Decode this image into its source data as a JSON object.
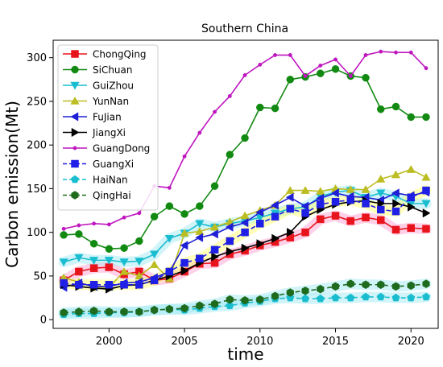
{
  "chart_data": {
    "type": "line",
    "title": "Southern China",
    "xlabel": "time",
    "ylabel": "Carbon emission(Mt)",
    "xlim": [
      1996.3,
      2021.8
    ],
    "ylim": [
      -10,
      320
    ],
    "xticks": [
      2000,
      2005,
      2010,
      2015,
      2020
    ],
    "yticks": [
      0,
      50,
      100,
      150,
      200,
      250,
      300
    ],
    "legend_position": "upper-left",
    "grid": false,
    "x": [
      1997,
      1998,
      1999,
      2000,
      2001,
      2002,
      2003,
      2004,
      2005,
      2006,
      2007,
      2008,
      2009,
      2010,
      2011,
      2012,
      2013,
      2014,
      2015,
      2016,
      2017,
      2018,
      2019,
      2020,
      2021
    ],
    "series": [
      {
        "name": "ChongQing",
        "color": "#e8141b",
        "marker": "square",
        "dashed": false,
        "band": "#ff99cc",
        "values": [
          45,
          55,
          59,
          60,
          52,
          55,
          45,
          47,
          55,
          64,
          65,
          75,
          79,
          85,
          89,
          94,
          100,
          115,
          119,
          113,
          117,
          114,
          103,
          105,
          104
        ]
      },
      {
        "name": "SiChuan",
        "color": "#128a12",
        "marker": "circle",
        "dashed": false,
        "band": null,
        "values": [
          97,
          98,
          87,
          81,
          82,
          90,
          118,
          130,
          121,
          130,
          153,
          189,
          208,
          243,
          242,
          275,
          278,
          282,
          287,
          279,
          277,
          241,
          244,
          232,
          232
        ]
      },
      {
        "name": "GuiZhou",
        "color": "#19bdcf",
        "marker": "triangle-down",
        "dashed": false,
        "band": "#99e6f2",
        "values": [
          66,
          71,
          68,
          68,
          66,
          67,
          75,
          93,
          99,
          110,
          106,
          110,
          113,
          117,
          122,
          127,
          129,
          141,
          146,
          148,
          140,
          145,
          141,
          133,
          133
        ]
      },
      {
        "name": "YunNan",
        "color": "#bcbd22",
        "marker": "triangle-up",
        "dashed": false,
        "band": null,
        "values": [
          48,
          43,
          37,
          37,
          55,
          50,
          63,
          47,
          99,
          101,
          106,
          112,
          119,
          125,
          131,
          148,
          148,
          147,
          150,
          149,
          149,
          161,
          166,
          172,
          163
        ]
      },
      {
        "name": "FuJian",
        "color": "#1f1fd6",
        "marker": "triangle-left",
        "dashed": false,
        "band": null,
        "values": [
          37,
          42,
          38,
          38,
          42,
          43,
          48,
          55,
          85,
          94,
          98,
          106,
          111,
          123,
          131,
          140,
          130,
          139,
          145,
          141,
          140,
          137,
          145,
          142,
          146
        ]
      },
      {
        "name": "JiangXi",
        "color": "#000000",
        "marker": "triangle-right",
        "dashed": false,
        "band": null,
        "values": [
          40,
          38,
          36,
          35,
          39,
          40,
          45,
          50,
          56,
          65,
          72,
          78,
          82,
          87,
          93,
          100,
          118,
          126,
          132,
          135,
          136,
          133,
          133,
          129,
          122
        ]
      },
      {
        "name": "GuangDong",
        "color": "#bf16bf",
        "marker": "point",
        "dashed": false,
        "band": null,
        "values": [
          104,
          108,
          110,
          109,
          117,
          122,
          153,
          151,
          187,
          214,
          238,
          256,
          280,
          292,
          303,
          303,
          279,
          291,
          298,
          279,
          303,
          307,
          306,
          306,
          288
        ]
      },
      {
        "name": "GuangXi",
        "color": "#1f1fe6",
        "marker": "square",
        "dashed": true,
        "band": "#ffff66",
        "values": [
          42,
          40,
          40,
          40,
          40,
          40,
          45,
          55,
          65,
          70,
          80,
          90,
          100,
          110,
          118,
          127,
          122,
          132,
          135,
          137,
          133,
          126,
          124,
          140,
          148
        ]
      },
      {
        "name": "HaiNan",
        "color": "#19bdcf",
        "marker": "pentagon",
        "dashed": true,
        "band": "#99e6f2",
        "values": [
          6,
          7,
          7,
          8,
          8,
          9,
          11,
          12,
          11,
          13,
          15,
          16,
          19,
          21,
          24,
          25,
          24,
          24,
          25,
          25,
          26,
          26,
          25,
          25,
          26
        ]
      },
      {
        "name": "QingHai",
        "color": "#1e6b1e",
        "marker": "hexagon",
        "dashed": true,
        "band": "#99e6f2",
        "values": [
          8,
          9,
          10,
          9,
          9,
          9,
          11,
          12,
          13,
          16,
          18,
          23,
          22,
          23,
          27,
          31,
          33,
          35,
          38,
          41,
          40,
          40,
          38,
          39,
          41
        ]
      }
    ]
  }
}
